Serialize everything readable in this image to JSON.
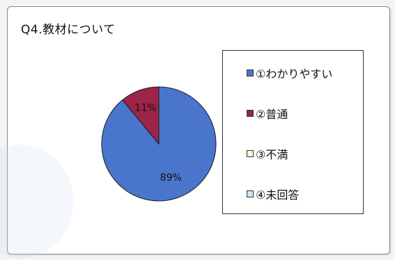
{
  "chart_data": {
    "type": "pie",
    "title": "Q4.教材について",
    "categories": [
      "①わかりやすい",
      "②普通",
      "③不満",
      "④未回答"
    ],
    "values": [
      89,
      11,
      0,
      0
    ],
    "data_labels": [
      "89%",
      "11%",
      "",
      ""
    ],
    "colors": [
      "#4a75cc",
      "#9c2448",
      "#fbf6d6",
      "#c9e6f3"
    ],
    "legend_position": "right"
  }
}
